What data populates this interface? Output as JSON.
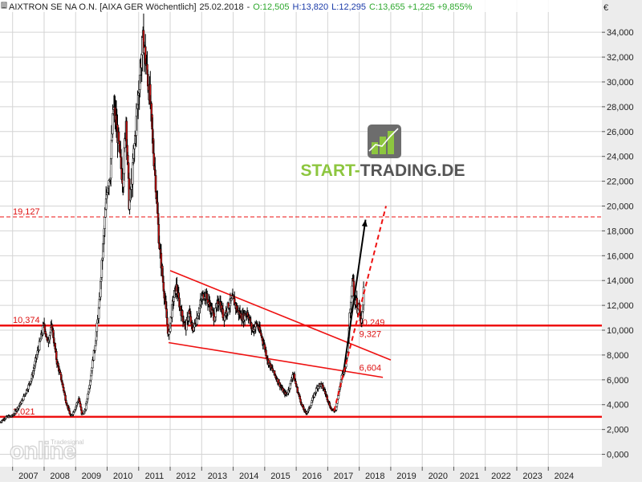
{
  "header": {
    "instrument": "AIXTRON SE NA O.N. [AIXA GER  Wöchentlich]",
    "date": "25.02.2018",
    "sep": "-",
    "open": "O:12,505",
    "high": "H:13,820",
    "low": "L:12,295",
    "close_change": "C:13,655 +1,225 +9,855%",
    "currency": "€"
  },
  "logo": {
    "start": "START",
    "dash": "-",
    "trading": "TRADING.DE",
    "bar_color": "#8dc63f"
  },
  "watermark": {
    "word": "online",
    "tag": "Tradesignal"
  },
  "colors": {
    "accent_red": "#ee1111",
    "label_red": "#dd1111",
    "header_green": "#2ea82e",
    "header_blue": "#1a3aa8",
    "grid": "#d4d4d4",
    "axis_panel": "#ececec"
  },
  "chart_data": {
    "type": "candlestick",
    "title": "AIXTRON SE NA O.N. [AIXA GER  Wöchentlich]",
    "ylabel": "€",
    "y_ticks": [
      "0,000",
      "2,000",
      "4,000",
      "6,000",
      "8,000",
      "10,000",
      "12,000",
      "14,000",
      "16,000",
      "18,000",
      "20,000",
      "22,000",
      "24,000",
      "26,000",
      "28,000",
      "30,000",
      "32,000",
      "34,000"
    ],
    "x_ticks": [
      "2007",
      "2008",
      "2009",
      "2010",
      "2011",
      "2012",
      "2013",
      "2014",
      "2015",
      "2016",
      "2017",
      "2018",
      "2019",
      "2020",
      "2021",
      "2022",
      "2023",
      "2024"
    ],
    "ylim": [
      -1.0,
      36.6
    ],
    "xlim": [
      2006.6,
      2025.7
    ],
    "price_path": [
      [
        2006.6,
        2.6
      ],
      [
        2006.8,
        3.0
      ],
      [
        2007.0,
        3.1
      ],
      [
        2007.3,
        4.3
      ],
      [
        2007.6,
        6.1
      ],
      [
        2007.8,
        8.3
      ],
      [
        2008.0,
        10.5
      ],
      [
        2008.1,
        9.0
      ],
      [
        2008.25,
        10.3
      ],
      [
        2008.4,
        7.5
      ],
      [
        2008.55,
        6.0
      ],
      [
        2008.7,
        4.2
      ],
      [
        2008.85,
        3.0
      ],
      [
        2009.0,
        3.8
      ],
      [
        2009.1,
        4.5
      ],
      [
        2009.2,
        3.2
      ],
      [
        2009.3,
        3.5
      ],
      [
        2009.45,
        5.8
      ],
      [
        2009.6,
        8.5
      ],
      [
        2009.75,
        12.0
      ],
      [
        2009.85,
        16.0
      ],
      [
        2010.0,
        21.5
      ],
      [
        2010.1,
        22.8
      ],
      [
        2010.2,
        28.0
      ],
      [
        2010.3,
        26.5
      ],
      [
        2010.4,
        24.0
      ],
      [
        2010.5,
        22.0
      ],
      [
        2010.6,
        27.0
      ],
      [
        2010.7,
        20.0
      ],
      [
        2010.8,
        22.5
      ],
      [
        2010.9,
        26.0
      ],
      [
        2011.05,
        31.0
      ],
      [
        2011.15,
        33.5
      ],
      [
        2011.25,
        31.0
      ],
      [
        2011.35,
        29.0
      ],
      [
        2011.45,
        25.0
      ],
      [
        2011.55,
        21.5
      ],
      [
        2011.65,
        17.0
      ],
      [
        2011.75,
        14.5
      ],
      [
        2011.85,
        12.0
      ],
      [
        2011.95,
        9.4
      ],
      [
        2012.0,
        10.5
      ],
      [
        2012.1,
        12.5
      ],
      [
        2012.2,
        13.5
      ],
      [
        2012.3,
        12.0
      ],
      [
        2012.4,
        11.0
      ],
      [
        2012.5,
        10.2
      ],
      [
        2012.6,
        11.5
      ],
      [
        2012.7,
        10.0
      ],
      [
        2012.8,
        10.5
      ],
      [
        2012.9,
        11.5
      ],
      [
        2013.0,
        12.5
      ],
      [
        2013.1,
        13.0
      ],
      [
        2013.25,
        12.0
      ],
      [
        2013.4,
        11.0
      ],
      [
        2013.55,
        12.5
      ],
      [
        2013.7,
        11.0
      ],
      [
        2013.85,
        12.0
      ],
      [
        2014.0,
        12.5
      ],
      [
        2014.15,
        11.5
      ],
      [
        2014.3,
        11.0
      ],
      [
        2014.45,
        11.5
      ],
      [
        2014.6,
        10.0
      ],
      [
        2014.75,
        10.5
      ],
      [
        2014.9,
        9.5
      ],
      [
        2015.0,
        8.6
      ],
      [
        2015.1,
        7.5
      ],
      [
        2015.2,
        7.0
      ],
      [
        2015.3,
        6.5
      ],
      [
        2015.4,
        6.0
      ],
      [
        2015.5,
        5.5
      ],
      [
        2015.6,
        5.0
      ],
      [
        2015.7,
        4.8
      ],
      [
        2015.8,
        5.5
      ],
      [
        2015.9,
        6.6
      ],
      [
        2016.0,
        5.5
      ],
      [
        2016.1,
        4.6
      ],
      [
        2016.2,
        3.8
      ],
      [
        2016.3,
        3.3
      ],
      [
        2016.4,
        3.6
      ],
      [
        2016.5,
        4.3
      ],
      [
        2016.6,
        5.0
      ],
      [
        2016.7,
        5.6
      ],
      [
        2016.8,
        5.6
      ],
      [
        2016.9,
        5.1
      ],
      [
        2017.0,
        4.4
      ],
      [
        2017.1,
        3.7
      ],
      [
        2017.15,
        3.5
      ],
      [
        2017.25,
        3.6
      ],
      [
        2017.35,
        5.0
      ],
      [
        2017.45,
        6.3
      ],
      [
        2017.5,
        6.5
      ],
      [
        2017.55,
        7.0
      ],
      [
        2017.65,
        9.0
      ],
      [
        2017.7,
        11.5
      ],
      [
        2017.75,
        13.0
      ],
      [
        2017.8,
        14.6
      ],
      [
        2017.85,
        12.0
      ],
      [
        2017.9,
        13.0
      ],
      [
        2017.95,
        11.5
      ],
      [
        2018.0,
        12.0
      ],
      [
        2018.05,
        10.8
      ],
      [
        2018.1,
        11.3
      ],
      [
        2018.15,
        13.6
      ]
    ],
    "horizontal_lines": [
      {
        "value": 19.127,
        "label": "19,127",
        "style": "dashed"
      },
      {
        "value": 10.374,
        "label": "10,374",
        "style": "solid"
      },
      {
        "value": 3.021,
        "label": "3,021",
        "style": "solid"
      }
    ],
    "trendlines": [
      {
        "name": "upper-falling",
        "from": [
          2012.0,
          14.8
        ],
        "to": [
          2019.0,
          7.6
        ]
      },
      {
        "name": "lower-falling",
        "from": [
          2011.95,
          9.0
        ],
        "to": [
          2018.75,
          6.2
        ]
      }
    ],
    "projections": [
      {
        "name": "projection-solid",
        "from": [
          2017.5,
          6.6
        ],
        "to": [
          2018.2,
          18.9
        ],
        "style": "solid"
      },
      {
        "name": "projection-dashed",
        "from": [
          2017.2,
          3.5
        ],
        "to": [
          2018.85,
          20.0
        ],
        "style": "dashed"
      }
    ],
    "level_labels": [
      {
        "text": "10,249",
        "at": [
          2017.95,
          10.249
        ]
      },
      {
        "text": "9,327",
        "at": [
          2018.0,
          9.327
        ]
      },
      {
        "text": "6,604",
        "at": [
          2018.0,
          6.604
        ]
      }
    ],
    "grid": true,
    "legend": "none"
  }
}
